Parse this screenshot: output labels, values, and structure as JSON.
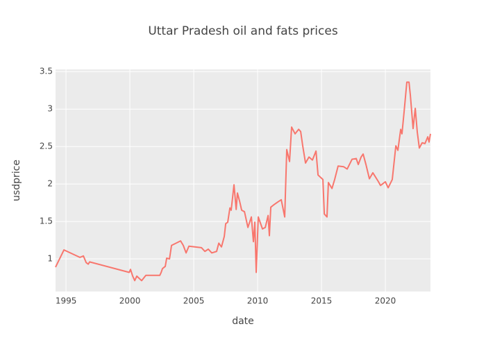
{
  "chart_data": {
    "type": "line",
    "title": "Uttar Pradesh oil and fats prices",
    "x_label": "date",
    "y_label": "usdprice",
    "color": "#F8766D",
    "grid": true,
    "x": [
      1994.18,
      1994.84,
      1996.09,
      1996.36,
      1996.58,
      1996.74,
      1996.85,
      1999.95,
      2000.05,
      2000.22,
      2000.38,
      2000.54,
      2000.92,
      2001.25,
      2002.34,
      2002.45,
      2002.55,
      2002.77,
      2002.88,
      2003.1,
      2003.26,
      2003.97,
      2004.18,
      2004.4,
      2004.62,
      2005.6,
      2005.87,
      2006.14,
      2006.41,
      2006.79,
      2006.96,
      2007.17,
      2007.39,
      2007.5,
      2007.66,
      2007.83,
      2007.93,
      2008.15,
      2008.32,
      2008.42,
      2008.59,
      2008.75,
      2008.97,
      2009.24,
      2009.51,
      2009.67,
      2009.78,
      2009.89,
      2010.05,
      2010.38,
      2010.6,
      2010.82,
      2010.92,
      2011.03,
      2011.25,
      2011.58,
      2011.85,
      2012.12,
      2012.28,
      2012.5,
      2012.66,
      2012.93,
      2013.21,
      2013.37,
      2013.53,
      2013.75,
      2014.02,
      2014.29,
      2014.57,
      2014.73,
      2015.11,
      2015.22,
      2015.43,
      2015.54,
      2015.82,
      2016.03,
      2016.3,
      2016.74,
      2017.01,
      2017.39,
      2017.72,
      2017.88,
      2018.1,
      2018.26,
      2018.48,
      2018.75,
      2019.02,
      2019.46,
      2019.62,
      2020.0,
      2020.22,
      2020.54,
      2020.82,
      2020.98,
      2021.2,
      2021.3,
      2021.47,
      2021.68,
      2021.85,
      2021.96,
      2022.17,
      2022.34,
      2022.5,
      2022.66,
      2022.88,
      2023.1,
      2023.32,
      2023.42,
      2023.53
    ],
    "values": [
      0.89,
      1.12,
      1.02,
      1.04,
      0.95,
      0.93,
      0.96,
      0.82,
      0.86,
      0.77,
      0.71,
      0.77,
      0.71,
      0.78,
      0.78,
      0.82,
      0.87,
      0.9,
      1.01,
      1.0,
      1.18,
      1.24,
      1.18,
      1.08,
      1.17,
      1.15,
      1.1,
      1.13,
      1.08,
      1.1,
      1.21,
      1.16,
      1.3,
      1.47,
      1.49,
      1.68,
      1.65,
      1.99,
      1.66,
      1.88,
      1.77,
      1.65,
      1.63,
      1.42,
      1.56,
      1.23,
      1.49,
      0.82,
      1.56,
      1.4,
      1.42,
      1.58,
      1.31,
      1.69,
      1.72,
      1.76,
      1.79,
      1.56,
      2.46,
      2.3,
      2.76,
      2.67,
      2.73,
      2.7,
      2.51,
      2.28,
      2.36,
      2.32,
      2.44,
      2.12,
      2.06,
      1.6,
      1.56,
      2.02,
      1.94,
      2.06,
      2.24,
      2.23,
      2.2,
      2.33,
      2.34,
      2.26,
      2.36,
      2.4,
      2.26,
      2.07,
      2.15,
      2.03,
      1.98,
      2.03,
      1.95,
      2.06,
      2.51,
      2.45,
      2.73,
      2.67,
      2.97,
      3.36,
      3.36,
      3.18,
      2.74,
      3.01,
      2.69,
      2.48,
      2.55,
      2.54,
      2.63,
      2.56,
      2.67
    ],
    "xlim": [
      1994.18,
      2023.53
    ],
    "xticks": [
      1995,
      2000,
      2005,
      2010,
      2015,
      2020
    ],
    "ylim": [
      0.565,
      3.53
    ],
    "yticks": [
      1,
      1.5,
      2,
      2.5,
      3,
      3.5
    ]
  }
}
